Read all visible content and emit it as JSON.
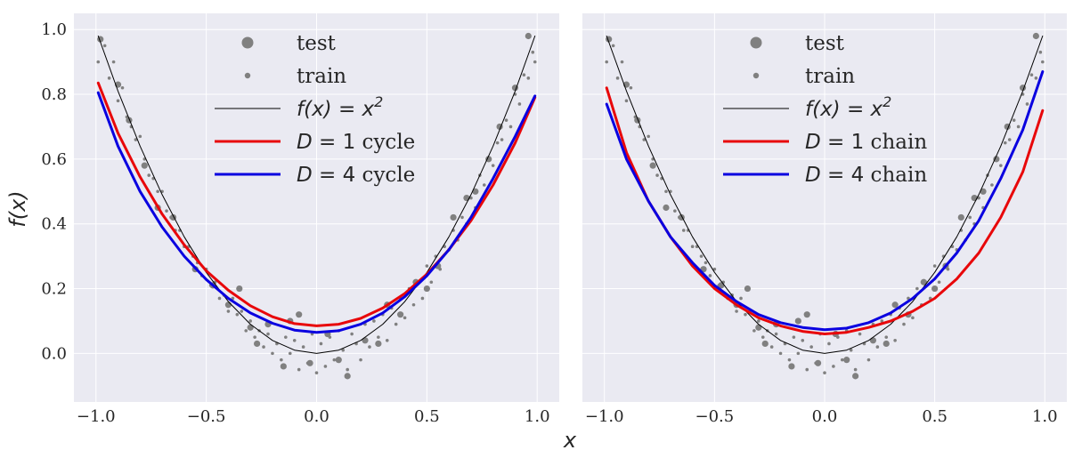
{
  "figure": {
    "xlabel": "x",
    "ylabel": "f(x)"
  },
  "chart_data": [
    {
      "type": "scatter",
      "title": "",
      "xlabel": "x",
      "ylabel": "f(x)",
      "xlim": [
        -1.1,
        1.1
      ],
      "ylim": [
        -0.15,
        1.05
      ],
      "xticks": [
        -1.0,
        -0.5,
        0.0,
        0.5,
        1.0
      ],
      "xtick_labels": [
        "−1.0",
        "−0.5",
        "0.0",
        "0.5",
        "1.0"
      ],
      "yticks": [
        0.0,
        0.2,
        0.4,
        0.6,
        0.8,
        1.0
      ],
      "ytick_labels": [
        "0.0",
        "0.2",
        "0.4",
        "0.6",
        "0.8",
        "1.0"
      ],
      "legend_position": "top-center",
      "legend": [
        {
          "label": "test",
          "kind": "big-dot"
        },
        {
          "label": "train",
          "kind": "small-dot"
        },
        {
          "label": "f(x) = x²",
          "math": "f(x) = x",
          "sup": "2",
          "kind": "line",
          "color": "#000000",
          "width": 1
        },
        {
          "label": "D = 1 cycle",
          "math": "D",
          "rest": " = 1",
          "word": " cycle",
          "kind": "line",
          "color": "#e8070a",
          "width": 3
        },
        {
          "label": "D = 4 cycle",
          "math": "D",
          "rest": " = 4",
          "word": " cycle",
          "kind": "line",
          "color": "#0a00e0",
          "width": 3
        }
      ],
      "series": [
        {
          "name": "f(x) = x^2",
          "color": "#000000",
          "width": 1,
          "x": [
            -0.99,
            -0.9,
            -0.8,
            -0.7,
            -0.6,
            -0.5,
            -0.4,
            -0.3,
            -0.2,
            -0.1,
            0.0,
            0.1,
            0.2,
            0.3,
            0.4,
            0.5,
            0.6,
            0.7,
            0.8,
            0.9,
            0.99
          ],
          "y": [
            0.98,
            0.81,
            0.64,
            0.49,
            0.36,
            0.25,
            0.16,
            0.09,
            0.04,
            0.01,
            0.0,
            0.01,
            0.04,
            0.09,
            0.16,
            0.25,
            0.36,
            0.49,
            0.64,
            0.81,
            0.98
          ]
        },
        {
          "name": "D = 1 cycle",
          "color": "#e8070a",
          "width": 3,
          "x": [
            -0.99,
            -0.9,
            -0.8,
            -0.7,
            -0.6,
            -0.5,
            -0.4,
            -0.3,
            -0.2,
            -0.1,
            0.0,
            0.1,
            0.2,
            0.3,
            0.4,
            0.5,
            0.6,
            0.7,
            0.8,
            0.9,
            0.99
          ],
          "y": [
            0.835,
            0.68,
            0.545,
            0.43,
            0.335,
            0.255,
            0.195,
            0.147,
            0.113,
            0.092,
            0.085,
            0.09,
            0.108,
            0.14,
            0.185,
            0.245,
            0.32,
            0.41,
            0.52,
            0.65,
            0.79
          ]
        },
        {
          "name": "D = 4 cycle",
          "color": "#0a00e0",
          "width": 3,
          "x": [
            -0.99,
            -0.9,
            -0.8,
            -0.7,
            -0.6,
            -0.5,
            -0.4,
            -0.3,
            -0.2,
            -0.1,
            0.0,
            0.1,
            0.2,
            0.3,
            0.4,
            0.5,
            0.6,
            0.7,
            0.8,
            0.9,
            0.99
          ],
          "y": [
            0.805,
            0.64,
            0.5,
            0.39,
            0.3,
            0.228,
            0.17,
            0.125,
            0.093,
            0.072,
            0.065,
            0.07,
            0.09,
            0.125,
            0.175,
            0.24,
            0.32,
            0.42,
            0.54,
            0.67,
            0.795
          ]
        }
      ],
      "scatter": {
        "test": {
          "x": [
            -0.98,
            -0.9,
            -0.85,
            -0.78,
            -0.72,
            -0.65,
            -0.55,
            -0.47,
            -0.4,
            -0.35,
            -0.3,
            -0.27,
            -0.22,
            -0.15,
            -0.12,
            -0.08,
            -0.03,
            0.05,
            0.1,
            0.14,
            0.22,
            0.28,
            0.32,
            0.38,
            0.45,
            0.5,
            0.55,
            0.62,
            0.68,
            0.72,
            0.78,
            0.83,
            0.9,
            0.96
          ],
          "y": [
            0.97,
            0.83,
            0.72,
            0.58,
            0.45,
            0.42,
            0.26,
            0.21,
            0.15,
            0.2,
            0.08,
            0.03,
            0.09,
            -0.04,
            0.1,
            0.12,
            -0.03,
            0.06,
            -0.02,
            -0.07,
            0.04,
            0.03,
            0.15,
            0.12,
            0.22,
            0.2,
            0.27,
            0.42,
            0.48,
            0.5,
            0.6,
            0.7,
            0.82,
            0.98
          ]
        },
        "train": {
          "x": [
            -0.99,
            -0.96,
            -0.94,
            -0.92,
            -0.9,
            -0.88,
            -0.86,
            -0.84,
            -0.82,
            -0.8,
            -0.78,
            -0.76,
            -0.74,
            -0.72,
            -0.7,
            -0.68,
            -0.66,
            -0.64,
            -0.62,
            -0.6,
            -0.58,
            -0.56,
            -0.54,
            -0.52,
            -0.5,
            -0.48,
            -0.46,
            -0.44,
            -0.42,
            -0.4,
            -0.38,
            -0.36,
            -0.34,
            -0.32,
            -0.3,
            -0.28,
            -0.26,
            -0.24,
            -0.22,
            -0.2,
            -0.18,
            -0.16,
            -0.14,
            -0.12,
            -0.1,
            -0.08,
            -0.06,
            -0.04,
            -0.02,
            0.0,
            0.02,
            0.04,
            0.06,
            0.08,
            0.1,
            0.12,
            0.14,
            0.16,
            0.18,
            0.2,
            0.22,
            0.24,
            0.26,
            0.28,
            0.3,
            0.32,
            0.34,
            0.36,
            0.38,
            0.4,
            0.42,
            0.44,
            0.46,
            0.48,
            0.5,
            0.52,
            0.54,
            0.56,
            0.58,
            0.6,
            0.62,
            0.64,
            0.66,
            0.68,
            0.7,
            0.72,
            0.74,
            0.76,
            0.78,
            0.8,
            0.82,
            0.84,
            0.86,
            0.88,
            0.9,
            0.92,
            0.94,
            0.96,
            0.98,
            0.99
          ],
          "y": [
            0.9,
            0.95,
            0.85,
            0.9,
            0.78,
            0.82,
            0.73,
            0.7,
            0.66,
            0.67,
            0.6,
            0.55,
            0.54,
            0.5,
            0.5,
            0.44,
            0.42,
            0.38,
            0.38,
            0.33,
            0.33,
            0.3,
            0.28,
            0.24,
            0.26,
            0.21,
            0.22,
            0.17,
            0.18,
            0.13,
            0.17,
            0.12,
            0.13,
            0.07,
            0.1,
            0.05,
            0.07,
            0.02,
            0.06,
            0.0,
            0.03,
            -0.02,
            0.05,
            0.0,
            0.04,
            -0.05,
            0.02,
            -0.03,
            0.06,
            -0.06,
            0.03,
            -0.04,
            0.05,
            -0.02,
            0.07,
            0.01,
            -0.05,
            0.06,
            0.03,
            -0.02,
            0.09,
            0.02,
            0.1,
            0.05,
            0.12,
            0.04,
            0.14,
            0.09,
            0.17,
            0.11,
            0.2,
            0.15,
            0.22,
            0.17,
            0.27,
            0.22,
            0.3,
            0.26,
            0.33,
            0.32,
            0.38,
            0.35,
            0.42,
            0.4,
            0.48,
            0.45,
            0.55,
            0.52,
            0.6,
            0.58,
            0.65,
            0.66,
            0.72,
            0.7,
            0.8,
            0.77,
            0.86,
            0.85,
            0.93,
            0.9
          ]
        }
      }
    },
    {
      "type": "scatter",
      "title": "",
      "xlabel": "x",
      "ylabel": "",
      "xlim": [
        -1.1,
        1.1
      ],
      "ylim": [
        -0.15,
        1.05
      ],
      "xticks": [
        -1.0,
        -0.5,
        0.0,
        0.5,
        1.0
      ],
      "xtick_labels": [
        "−1.0",
        "−0.5",
        "0.0",
        "0.5",
        "1.0"
      ],
      "yticks": [
        0.0,
        0.2,
        0.4,
        0.6,
        0.8,
        1.0
      ],
      "ytick_labels": [],
      "legend_position": "top-center",
      "legend": [
        {
          "label": "test",
          "kind": "big-dot"
        },
        {
          "label": "train",
          "kind": "small-dot"
        },
        {
          "label": "f(x) = x²",
          "math": "f(x) = x",
          "sup": "2",
          "kind": "line",
          "color": "#000000",
          "width": 1
        },
        {
          "label": "D = 1 chain",
          "math": "D",
          "rest": " = 1",
          "word": " chain",
          "kind": "line",
          "color": "#e8070a",
          "width": 3
        },
        {
          "label": "D = 4 chain",
          "math": "D",
          "rest": " = 4",
          "word": " chain",
          "kind": "line",
          "color": "#0a00e0",
          "width": 3
        }
      ],
      "series": [
        {
          "name": "f(x) = x^2",
          "color": "#000000",
          "width": 1,
          "x": [
            -0.99,
            -0.9,
            -0.8,
            -0.7,
            -0.6,
            -0.5,
            -0.4,
            -0.3,
            -0.2,
            -0.1,
            0.0,
            0.1,
            0.2,
            0.3,
            0.4,
            0.5,
            0.6,
            0.7,
            0.8,
            0.9,
            0.99
          ],
          "y": [
            0.98,
            0.81,
            0.64,
            0.49,
            0.36,
            0.25,
            0.16,
            0.09,
            0.04,
            0.01,
            0.0,
            0.01,
            0.04,
            0.09,
            0.16,
            0.25,
            0.36,
            0.49,
            0.64,
            0.81,
            0.98
          ]
        },
        {
          "name": "D = 1 chain",
          "color": "#e8070a",
          "width": 3,
          "x": [
            -0.99,
            -0.9,
            -0.8,
            -0.7,
            -0.6,
            -0.5,
            -0.4,
            -0.3,
            -0.2,
            -0.1,
            0.0,
            0.1,
            0.2,
            0.3,
            0.4,
            0.5,
            0.6,
            0.7,
            0.8,
            0.9,
            0.99
          ],
          "y": [
            0.82,
            0.62,
            0.47,
            0.36,
            0.27,
            0.2,
            0.15,
            0.11,
            0.085,
            0.068,
            0.06,
            0.065,
            0.08,
            0.1,
            0.13,
            0.17,
            0.23,
            0.31,
            0.42,
            0.56,
            0.75
          ]
        },
        {
          "name": "D = 4 chain",
          "color": "#0a00e0",
          "width": 3,
          "x": [
            -0.99,
            -0.9,
            -0.8,
            -0.7,
            -0.6,
            -0.5,
            -0.4,
            -0.3,
            -0.2,
            -0.1,
            0.0,
            0.1,
            0.2,
            0.3,
            0.4,
            0.5,
            0.6,
            0.7,
            0.8,
            0.9,
            0.99
          ],
          "y": [
            0.77,
            0.6,
            0.47,
            0.36,
            0.28,
            0.21,
            0.16,
            0.12,
            0.095,
            0.08,
            0.073,
            0.078,
            0.095,
            0.125,
            0.17,
            0.23,
            0.31,
            0.41,
            0.54,
            0.69,
            0.87
          ]
        }
      ],
      "scatter": {
        "test": {
          "x": [
            -0.98,
            -0.9,
            -0.85,
            -0.78,
            -0.72,
            -0.65,
            -0.55,
            -0.47,
            -0.4,
            -0.35,
            -0.3,
            -0.27,
            -0.22,
            -0.15,
            -0.12,
            -0.08,
            -0.03,
            0.05,
            0.1,
            0.14,
            0.22,
            0.28,
            0.32,
            0.38,
            0.45,
            0.5,
            0.55,
            0.62,
            0.68,
            0.72,
            0.78,
            0.83,
            0.9,
            0.96
          ],
          "y": [
            0.97,
            0.83,
            0.72,
            0.58,
            0.45,
            0.42,
            0.26,
            0.21,
            0.15,
            0.2,
            0.08,
            0.03,
            0.09,
            -0.04,
            0.1,
            0.12,
            -0.03,
            0.06,
            -0.02,
            -0.07,
            0.04,
            0.03,
            0.15,
            0.12,
            0.22,
            0.2,
            0.27,
            0.42,
            0.48,
            0.5,
            0.6,
            0.7,
            0.82,
            0.98
          ]
        },
        "train": {
          "x": [
            -0.99,
            -0.96,
            -0.94,
            -0.92,
            -0.9,
            -0.88,
            -0.86,
            -0.84,
            -0.82,
            -0.8,
            -0.78,
            -0.76,
            -0.74,
            -0.72,
            -0.7,
            -0.68,
            -0.66,
            -0.64,
            -0.62,
            -0.6,
            -0.58,
            -0.56,
            -0.54,
            -0.52,
            -0.5,
            -0.48,
            -0.46,
            -0.44,
            -0.42,
            -0.4,
            -0.38,
            -0.36,
            -0.34,
            -0.32,
            -0.3,
            -0.28,
            -0.26,
            -0.24,
            -0.22,
            -0.2,
            -0.18,
            -0.16,
            -0.14,
            -0.12,
            -0.1,
            -0.08,
            -0.06,
            -0.04,
            -0.02,
            0.0,
            0.02,
            0.04,
            0.06,
            0.08,
            0.1,
            0.12,
            0.14,
            0.16,
            0.18,
            0.2,
            0.22,
            0.24,
            0.26,
            0.28,
            0.3,
            0.32,
            0.34,
            0.36,
            0.38,
            0.4,
            0.42,
            0.44,
            0.46,
            0.48,
            0.5,
            0.52,
            0.54,
            0.56,
            0.58,
            0.6,
            0.62,
            0.64,
            0.66,
            0.68,
            0.7,
            0.72,
            0.74,
            0.76,
            0.78,
            0.8,
            0.82,
            0.84,
            0.86,
            0.88,
            0.9,
            0.92,
            0.94,
            0.96,
            0.98,
            0.99
          ],
          "y": [
            0.9,
            0.95,
            0.85,
            0.9,
            0.78,
            0.82,
            0.73,
            0.7,
            0.66,
            0.67,
            0.6,
            0.55,
            0.54,
            0.5,
            0.5,
            0.44,
            0.42,
            0.38,
            0.38,
            0.33,
            0.33,
            0.3,
            0.28,
            0.24,
            0.26,
            0.21,
            0.22,
            0.17,
            0.18,
            0.13,
            0.17,
            0.12,
            0.13,
            0.07,
            0.1,
            0.05,
            0.07,
            0.02,
            0.06,
            0.0,
            0.03,
            -0.02,
            0.05,
            0.0,
            0.04,
            -0.05,
            0.02,
            -0.03,
            0.06,
            -0.06,
            0.03,
            -0.04,
            0.05,
            -0.02,
            0.07,
            0.01,
            -0.05,
            0.06,
            0.03,
            -0.02,
            0.09,
            0.02,
            0.1,
            0.05,
            0.12,
            0.04,
            0.14,
            0.09,
            0.17,
            0.11,
            0.2,
            0.15,
            0.22,
            0.17,
            0.27,
            0.22,
            0.3,
            0.26,
            0.33,
            0.32,
            0.38,
            0.35,
            0.42,
            0.4,
            0.48,
            0.45,
            0.55,
            0.52,
            0.6,
            0.58,
            0.65,
            0.66,
            0.72,
            0.7,
            0.8,
            0.77,
            0.86,
            0.85,
            0.93,
            0.9
          ]
        }
      }
    }
  ]
}
